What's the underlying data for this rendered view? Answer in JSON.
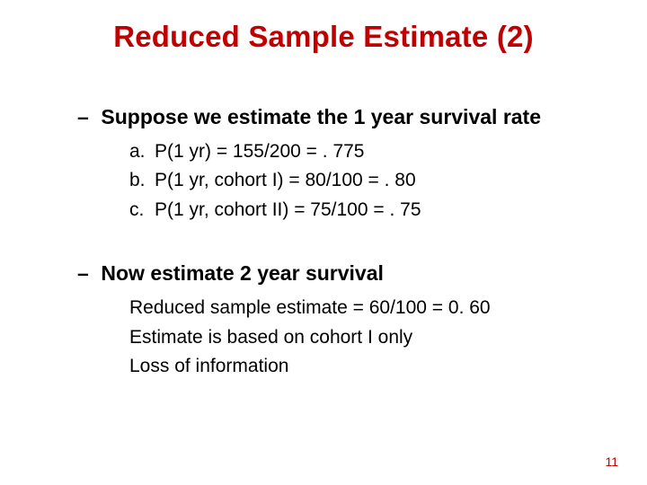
{
  "title_color": "#c00000",
  "text_color": "#000000",
  "page_number_color": "#c00000",
  "background_color": "#ffffff",
  "title": "Reduced Sample Estimate (2)",
  "section1": {
    "heading": "Suppose we estimate the 1 year survival rate",
    "items": [
      {
        "marker": "a.",
        "text": "P(1 yr) = 155/200 = . 775"
      },
      {
        "marker": "b.",
        "text": "P(1 yr, cohort I) = 80/100 = . 80"
      },
      {
        "marker": "c.",
        "text": "P(1 yr, cohort II) = 75/100 = . 75"
      }
    ]
  },
  "section2": {
    "heading": "Now estimate 2 year survival",
    "lines": [
      "Reduced sample estimate = 60/100 = 0. 60",
      "Estimate is based on cohort I only",
      "Loss of information"
    ]
  },
  "page_number": "11"
}
